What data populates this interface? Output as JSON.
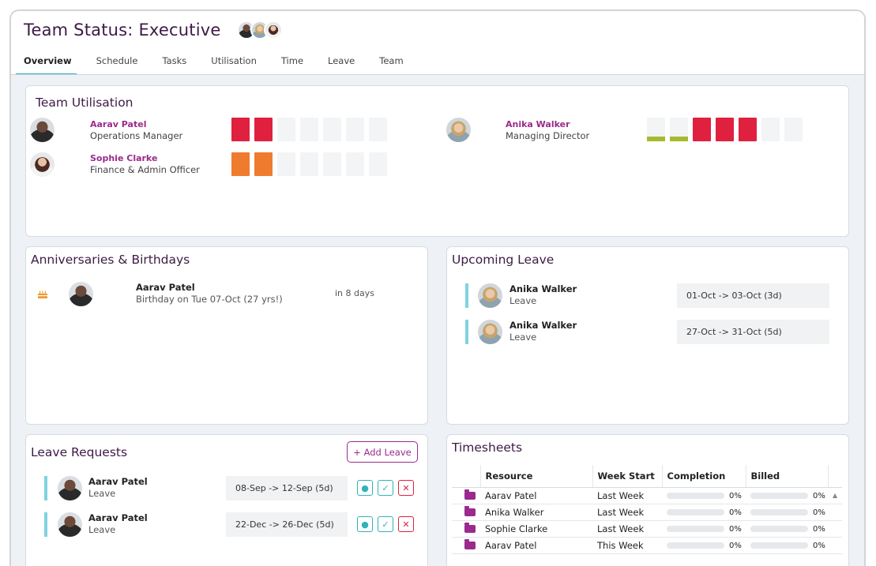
{
  "page": {
    "title": "Team Status: Executive"
  },
  "tabs": [
    "Overview",
    "Schedule",
    "Tasks",
    "Utilisation",
    "Time",
    "Leave",
    "Team"
  ],
  "utilisation": {
    "title": "Team Utilisation",
    "people": [
      {
        "name": "Aarav Patel",
        "role": "Operations Manager",
        "bars": [
          "red",
          "red",
          "empty",
          "empty",
          "empty",
          "empty",
          "empty"
        ]
      },
      {
        "name": "Sophie Clarke",
        "role": "Finance & Admin Officer",
        "bars": [
          "orange",
          "orange",
          "empty",
          "empty",
          "empty",
          "empty",
          "empty"
        ]
      },
      {
        "name": "Anika Walker",
        "role": "Managing Director",
        "bars": [
          "green",
          "green",
          "red",
          "red",
          "red",
          "empty",
          "empty"
        ]
      }
    ]
  },
  "anniversaries": {
    "title": "Anniversaries & Birthdays",
    "items": [
      {
        "icon": "cake-icon",
        "name": "Aarav Patel",
        "detail": "Birthday on Tue 07-Oct (27 yrs!)",
        "when": "in 8 days"
      }
    ]
  },
  "upcoming_leave": {
    "title": "Upcoming Leave",
    "items": [
      {
        "name": "Anika Walker",
        "type": "Leave",
        "dates": "01-Oct -> 03-Oct (3d)"
      },
      {
        "name": "Anika Walker",
        "type": "Leave",
        "dates": "27-Oct -> 31-Oct (5d)"
      }
    ]
  },
  "leave_requests": {
    "title": "Leave Requests",
    "add_label": "+ Add Leave",
    "items": [
      {
        "name": "Aarav Patel",
        "type": "Leave",
        "dates": "08-Sep -> 12-Sep (5d)"
      },
      {
        "name": "Aarav Patel",
        "type": "Leave",
        "dates": "22-Dec -> 26-Dec (5d)"
      }
    ]
  },
  "timesheets": {
    "title": "Timesheets",
    "columns": [
      "Resource",
      "Week Start",
      "Completion",
      "Billed"
    ],
    "rows": [
      {
        "resource": "Aarav Patel",
        "week": "Last Week",
        "completion": "0%",
        "billed": "0%"
      },
      {
        "resource": "Anika Walker",
        "week": "Last Week",
        "completion": "0%",
        "billed": "0%"
      },
      {
        "resource": "Sophie Clarke",
        "week": "Last Week",
        "completion": "0%",
        "billed": "0%"
      },
      {
        "resource": "Aarav Patel",
        "week": "This Week",
        "completion": "0%",
        "billed": "0%"
      }
    ]
  },
  "colors": {
    "accent": "#9b2a8c",
    "title": "#3d1a45",
    "teal": "#2fb3b8",
    "red": "#e0203f",
    "orange": "#ef7b2f",
    "green": "#a8b92d"
  }
}
